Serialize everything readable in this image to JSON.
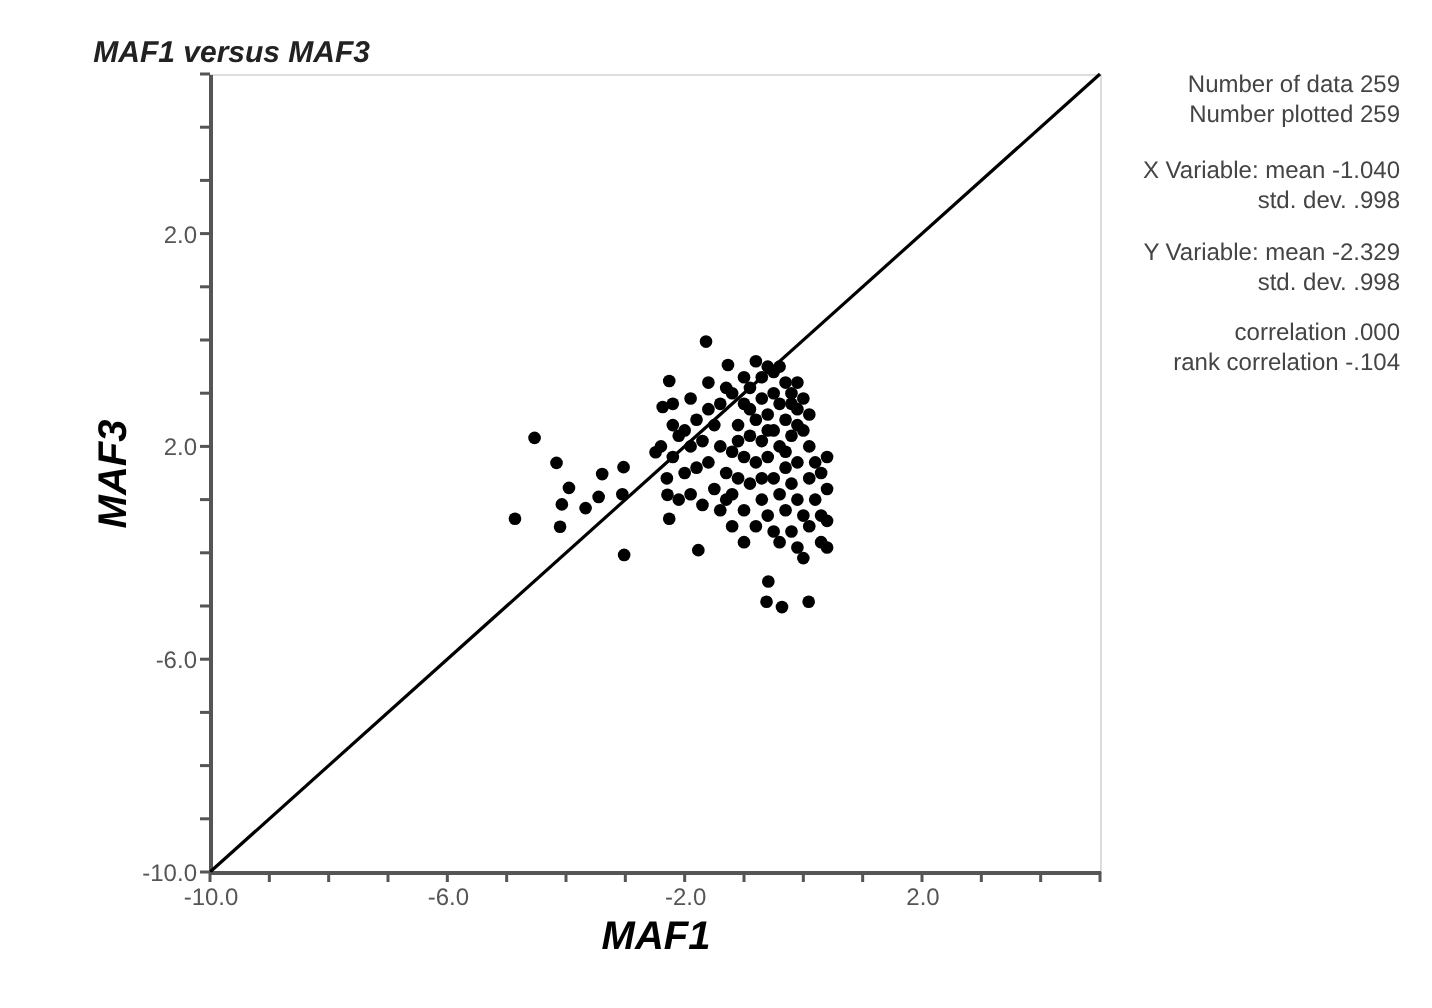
{
  "chart_data": {
    "type": "scatter",
    "title": "MAF1  versus MAF3",
    "xlabel": "MAF1",
    "ylabel": "MAF3",
    "xlim": [
      -10,
      5
    ],
    "ylim": [
      -10,
      5
    ],
    "xticks": [
      {
        "value": -10,
        "label": "-10.0"
      },
      {
        "value": -9,
        "label": null
      },
      {
        "value": -8,
        "label": null
      },
      {
        "value": -7,
        "label": null
      },
      {
        "value": -6,
        "label": "-6.0"
      },
      {
        "value": -5,
        "label": null
      },
      {
        "value": -4,
        "label": null
      },
      {
        "value": -3,
        "label": null
      },
      {
        "value": -2,
        "label": "-2.0"
      },
      {
        "value": -1,
        "label": null
      },
      {
        "value": 0,
        "label": null
      },
      {
        "value": 1,
        "label": null
      },
      {
        "value": 2,
        "label": "2.0"
      },
      {
        "value": 3,
        "label": null
      },
      {
        "value": 4,
        "label": null
      },
      {
        "value": 5,
        "label": null
      }
    ],
    "yticks": [
      {
        "value": -10,
        "label": "-10.0"
      },
      {
        "value": -9,
        "label": null
      },
      {
        "value": -8,
        "label": null
      },
      {
        "value": -7,
        "label": null
      },
      {
        "value": -6,
        "label": "-6.0"
      },
      {
        "value": -5,
        "label": null
      },
      {
        "value": -4,
        "label": null
      },
      {
        "value": -3,
        "label": null
      },
      {
        "value": -2,
        "label": "2.0"
      },
      {
        "value": -1,
        "label": null
      },
      {
        "value": 0,
        "label": null
      },
      {
        "value": 1,
        "label": null
      },
      {
        "value": 2,
        "label": "2.0"
      },
      {
        "value": 3,
        "label": null
      },
      {
        "value": 4,
        "label": null
      },
      {
        "value": 5,
        "label": null
      }
    ],
    "grid": false,
    "marker": "circle",
    "series": [
      {
        "color": "#000000",
        "x": [
          -1.64,
          -4.53,
          -4.86,
          -3.02,
          -1.77,
          -0.62,
          -0.36,
          0.09,
          -0.59,
          -2.26,
          -1.27,
          -4.16,
          -4.1,
          -3.95,
          -4.07,
          -3.67,
          -3.39,
          -3.45,
          -3.03,
          -3.05,
          -2.37,
          -2.49,
          -2.29,
          -2.26,
          -0.6,
          -0.5,
          -0.7,
          -0.3,
          -0.1,
          -0.9,
          -0.5,
          -0.2,
          0.0,
          -0.7,
          -1.0,
          -0.4,
          -0.1,
          -0.6,
          -0.8,
          -0.3,
          0.1,
          -1.1,
          -0.5,
          -0.2,
          0.0,
          -0.7,
          -0.9,
          -0.4,
          0.1,
          -1.2,
          -1.4,
          -1.3,
          -1.6,
          -1.5,
          -1.8,
          -2.0,
          -1.7,
          -1.9,
          -2.1,
          -2.2,
          -1.4,
          -1.2,
          -1.0,
          -0.8,
          -0.6,
          -0.3,
          -0.1,
          0.2,
          -1.6,
          -1.8,
          -2.0,
          -1.3,
          -1.1,
          -0.9,
          -0.5,
          -0.2,
          0.1,
          0.3,
          0.4,
          -1.5,
          -1.2,
          -0.7,
          -0.4,
          -0.1,
          0.2,
          0.4,
          -1.9,
          -1.7,
          -1.4,
          -1.0,
          -0.6,
          -0.3,
          0.0,
          0.3,
          -1.2,
          -0.8,
          -0.5,
          -0.2,
          0.1,
          0.4,
          -0.4,
          -0.1,
          0.0,
          0.3,
          0.4,
          -1.0,
          -1.3,
          -2.2,
          -2.4,
          -2.3,
          -2.1,
          -1.6,
          -1.9,
          -2.2,
          -1.0,
          -0.8,
          -0.4,
          -0.2,
          -0.9,
          -0.6,
          -1.1,
          -0.3,
          -0.7,
          -0.1
        ],
        "values": [
          -0.03,
          -1.84,
          -3.36,
          -4.04,
          -3.95,
          -4.92,
          -5.02,
          -4.92,
          -4.54,
          -0.77,
          -0.47,
          -2.31,
          -3.51,
          -2.78,
          -3.09,
          -3.16,
          -2.52,
          -2.95,
          -2.39,
          -2.9,
          -1.26,
          -2.11,
          -2.91,
          -3.36,
          -0.5,
          -0.6,
          -0.7,
          -0.8,
          -0.8,
          -0.9,
          -1.0,
          -1.0,
          -1.1,
          -1.1,
          -1.2,
          -1.2,
          -1.3,
          -1.4,
          -1.5,
          -1.5,
          -1.4,
          -1.6,
          -1.7,
          -1.8,
          -1.7,
          -1.9,
          -1.8,
          -2.0,
          -2.0,
          -1.0,
          -1.2,
          -0.9,
          -1.3,
          -1.6,
          -1.5,
          -1.7,
          -1.9,
          -2.0,
          -1.8,
          -1.6,
          -2.0,
          -2.1,
          -2.2,
          -2.3,
          -2.2,
          -2.4,
          -2.3,
          -2.3,
          -2.3,
          -2.4,
          -2.5,
          -2.5,
          -2.6,
          -2.7,
          -2.6,
          -2.7,
          -2.6,
          -2.5,
          -2.2,
          -2.8,
          -2.9,
          -3.0,
          -2.9,
          -3.0,
          -3.0,
          -2.8,
          -2.9,
          -3.1,
          -3.2,
          -3.2,
          -3.3,
          -3.2,
          -3.3,
          -3.3,
          -3.5,
          -3.5,
          -3.6,
          -3.6,
          -3.5,
          -3.4,
          -3.8,
          -3.9,
          -4.1,
          -3.8,
          -3.9,
          -3.8,
          -3.0,
          -2.2,
          -2.0,
          -2.6,
          -3.0,
          -0.8,
          -1.1,
          -1.2,
          -0.7,
          -0.4,
          -0.5,
          -1.2,
          -1.3,
          -1.7,
          -1.9,
          -2.1,
          -2.6,
          -1.6
        ]
      },
      {
        "type": "line",
        "marker": "none",
        "color": "#000000",
        "x": [
          -10,
          5
        ],
        "values": [
          -10,
          5
        ]
      }
    ],
    "annotations": [
      "Number of data 259",
      "Number plotted 259",
      "X Variable: mean -1.040",
      "std. dev. .998",
      "Y Variable: mean -2.329",
      "std. dev. .998",
      "correlation .000",
      "rank correlation -.104"
    ]
  }
}
